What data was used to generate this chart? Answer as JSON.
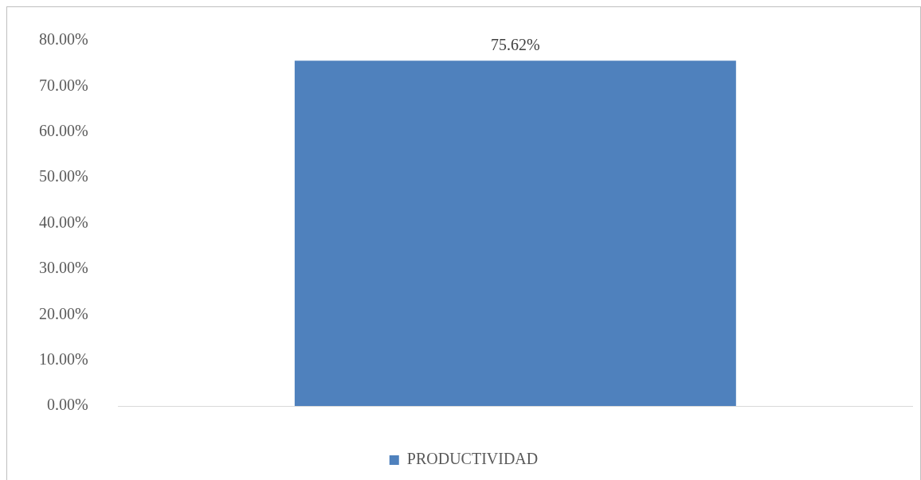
{
  "chart_data": {
    "type": "bar",
    "categories": [
      null
    ],
    "series": [
      {
        "name": "PRODUCTIVIDAD",
        "color": "#4f81bd",
        "values": [
          75.62
        ],
        "value_labels": [
          "75.62%"
        ]
      }
    ],
    "ylim": [
      0,
      80
    ],
    "yticks": [
      {
        "value": 0,
        "label": "0.00%"
      },
      {
        "value": 10,
        "label": "10.00%"
      },
      {
        "value": 20,
        "label": "20.00%"
      },
      {
        "value": 30,
        "label": "30.00%"
      },
      {
        "value": 40,
        "label": "40.00%"
      },
      {
        "value": 50,
        "label": "50.00%"
      },
      {
        "value": 60,
        "label": "60.00%"
      },
      {
        "value": 70,
        "label": "70.00%"
      },
      {
        "value": 80,
        "label": "80.00%"
      }
    ],
    "grid": false,
    "legend": "bottom"
  }
}
